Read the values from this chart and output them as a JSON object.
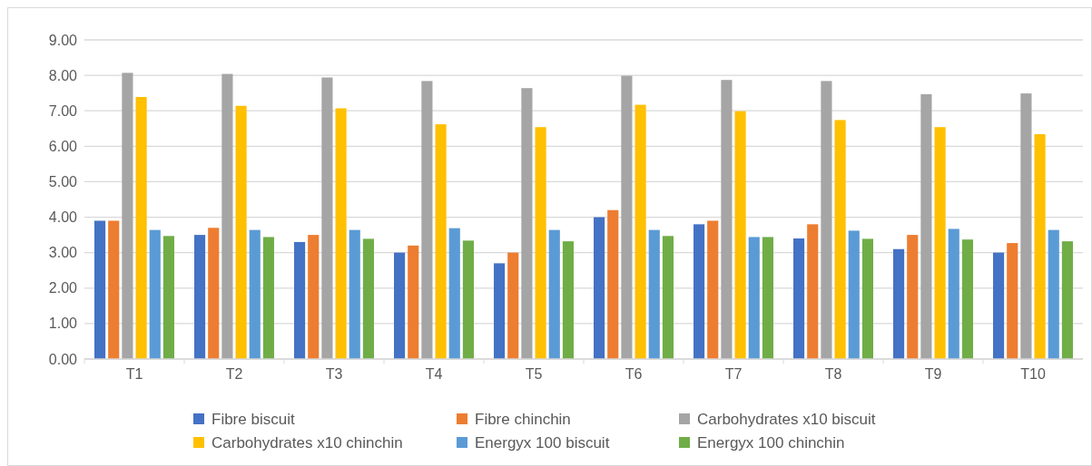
{
  "chart_data": {
    "type": "bar",
    "categories": [
      "T1",
      "T2",
      "T3",
      "T4",
      "T5",
      "T6",
      "T7",
      "T8",
      "T9",
      "T10"
    ],
    "series": [
      {
        "name": "Fibre biscuit",
        "color": "#4472c4",
        "values": [
          3.9,
          3.5,
          3.3,
          3.0,
          2.7,
          4.0,
          3.8,
          3.4,
          3.1,
          3.0
        ]
      },
      {
        "name": "Fibre chinchin",
        "color": "#ed7d31",
        "values": [
          3.9,
          3.7,
          3.5,
          3.2,
          3.0,
          4.2,
          3.9,
          3.8,
          3.5,
          3.27
        ]
      },
      {
        "name": "Carbohydrates x10 biscuit",
        "color": "#a5a5a5",
        "values": [
          8.07,
          8.04,
          7.94,
          7.84,
          7.64,
          7.99,
          7.87,
          7.84,
          7.47,
          7.49
        ]
      },
      {
        "name": "Carbohydrates x10 chinchin",
        "color": "#ffc000",
        "values": [
          7.39,
          7.14,
          7.07,
          6.62,
          6.54,
          7.17,
          6.99,
          6.74,
          6.54,
          6.34
        ]
      },
      {
        "name": "Energyx 100 biscuit",
        "color": "#5b9bd5",
        "values": [
          3.64,
          3.64,
          3.64,
          3.69,
          3.64,
          3.64,
          3.44,
          3.62,
          3.67,
          3.64
        ]
      },
      {
        "name": "Energyx 100 chinchin",
        "color": "#70ad47",
        "values": [
          3.47,
          3.44,
          3.39,
          3.34,
          3.32,
          3.47,
          3.44,
          3.39,
          3.37,
          3.32
        ]
      }
    ],
    "ylim": [
      0,
      9
    ],
    "yticks": [
      {
        "value": 0,
        "label": "0.00"
      },
      {
        "value": 1,
        "label": "1.00"
      },
      {
        "value": 2,
        "label": "2.00"
      },
      {
        "value": 3,
        "label": "3.00"
      },
      {
        "value": 4,
        "label": "4.00"
      },
      {
        "value": 5,
        "label": "5.00"
      },
      {
        "value": 6,
        "label": "6.00"
      },
      {
        "value": 7,
        "label": "7.00"
      },
      {
        "value": 8,
        "label": "8.00"
      },
      {
        "value": 9,
        "label": "9.00"
      }
    ],
    "grid": "y",
    "legend": "bottom"
  }
}
